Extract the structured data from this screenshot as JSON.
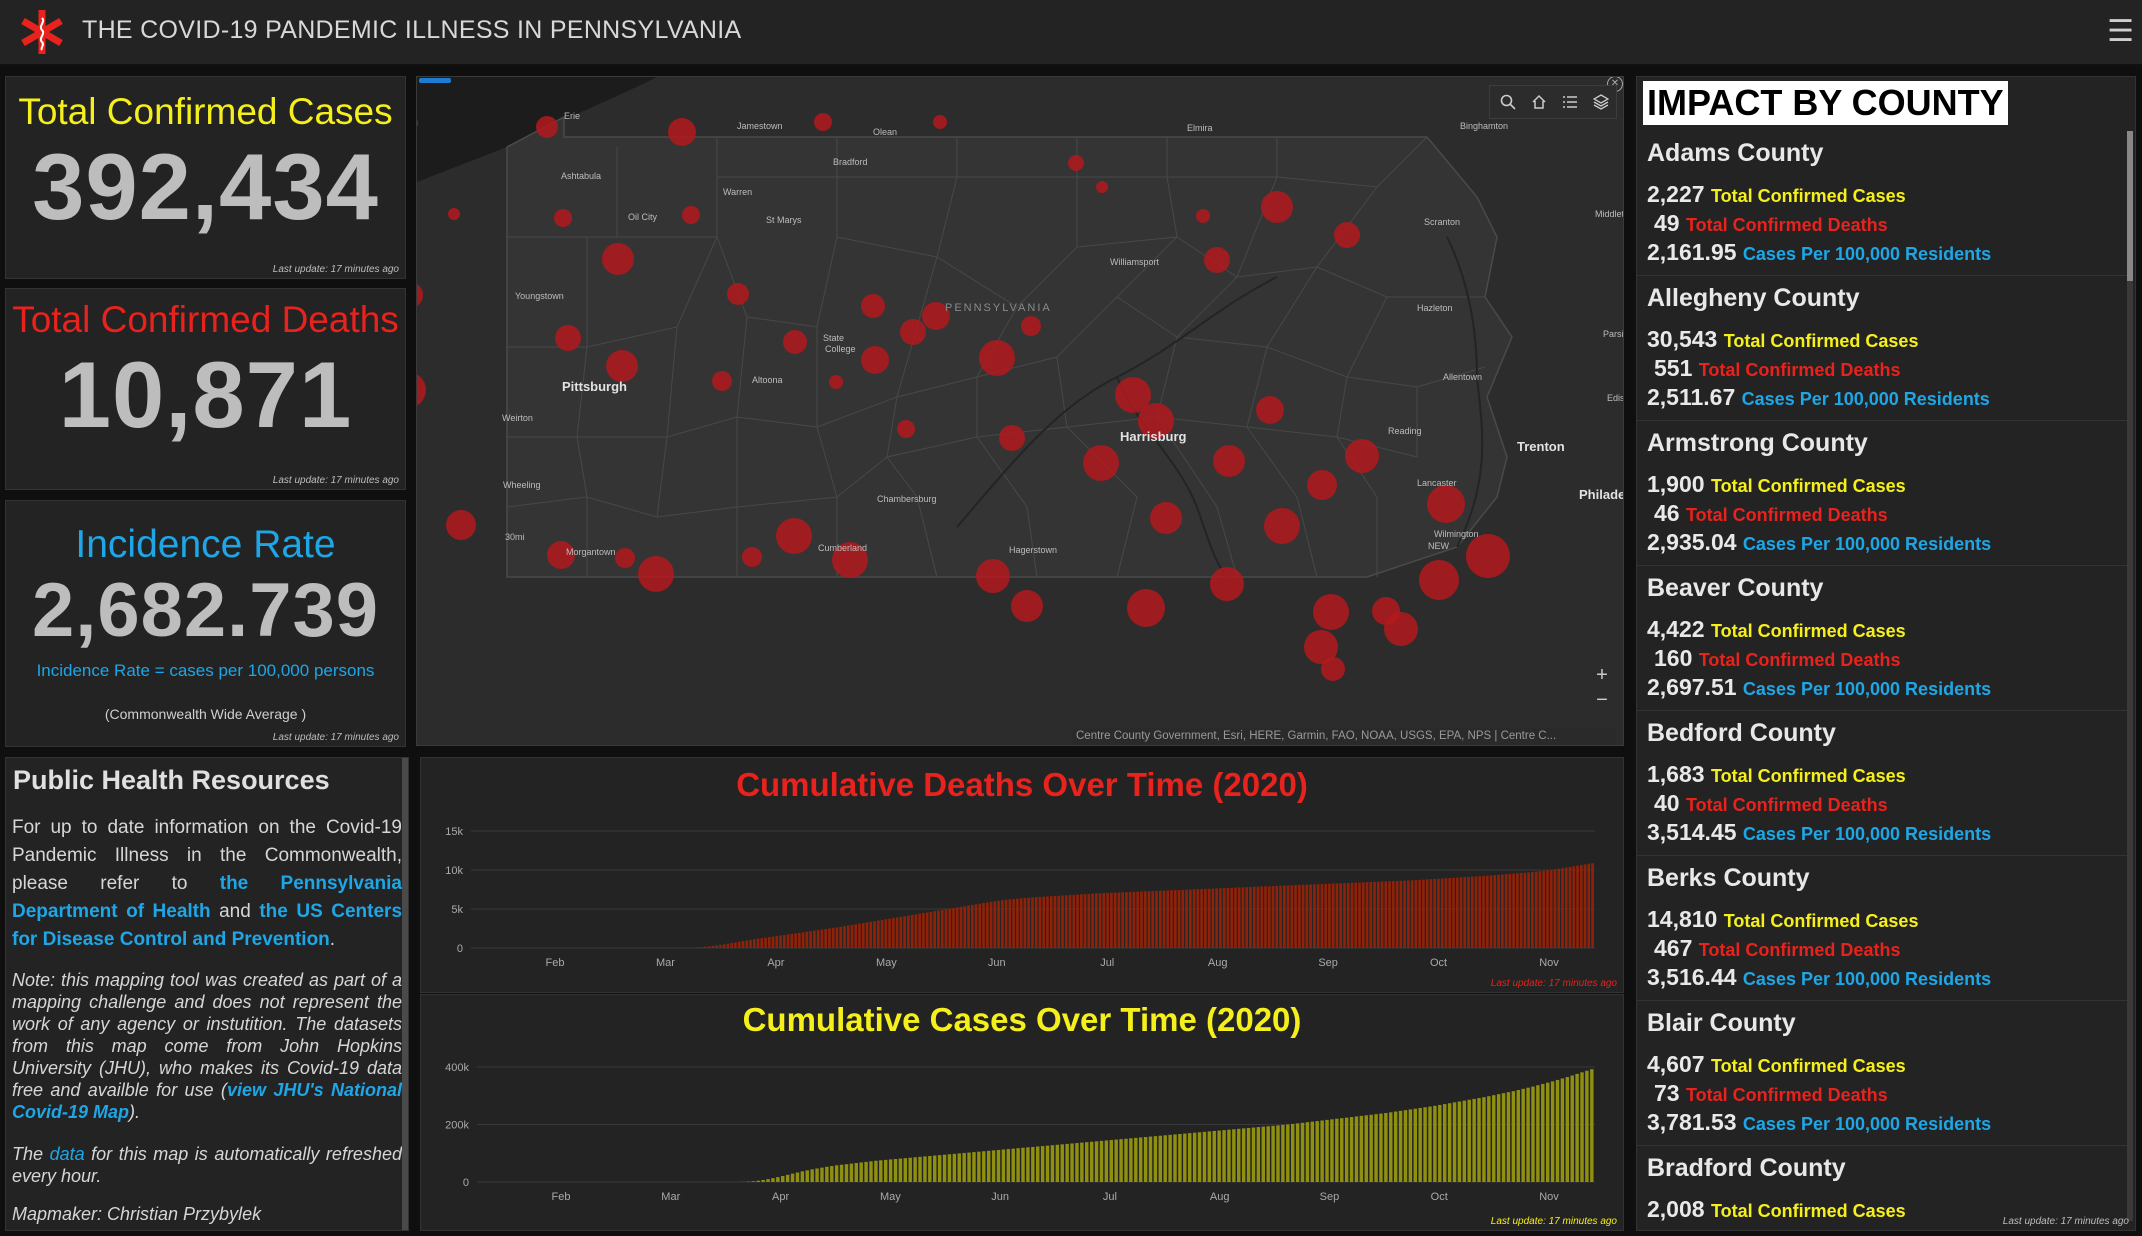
{
  "header": {
    "title": "THE COVID-19 PANDEMIC ILLNESS IN PENNSYLVANIA",
    "logo_icon": "medical-star-icon",
    "menu_icon": "hamburger-menu-icon"
  },
  "indicators": {
    "cases": {
      "label": "Total Confirmed Cases",
      "value": "392,434",
      "updated": "Last update: 17 minutes ago",
      "color": "#f5f01b"
    },
    "deaths": {
      "label": "Total Confirmed Deaths",
      "value": "10,871",
      "updated": "Last update: 17 minutes ago",
      "color": "#e8221c"
    },
    "incidence": {
      "label": "Incidence Rate",
      "value": "2,682.739",
      "subtitle": "Incidence Rate = cases per 100,000 persons",
      "note": "(Commonwealth Wide Average )",
      "updated": "Last update: 17 minutes ago",
      "color": "#1ea6e6"
    }
  },
  "map": {
    "state_label": "PENNSYLVANIA",
    "attribution": "Centre County Government, Esri, HERE, Garmin, FAO, NOAA, USGS, EPA, NPS | Centre C...",
    "tools": [
      "search-icon",
      "home-icon",
      "list-icon",
      "layers-icon"
    ],
    "zoom_in": "+",
    "zoom_out": "−",
    "cities": [
      {
        "name": "Erie",
        "bold": false
      },
      {
        "name": "Jamestown",
        "bold": false
      },
      {
        "name": "Olean",
        "bold": false
      },
      {
        "name": "Elmira",
        "bold": false
      },
      {
        "name": "Binghamton",
        "bold": false
      },
      {
        "name": "Ashtabula",
        "bold": false
      },
      {
        "name": "Bradford",
        "bold": false
      },
      {
        "name": "Warren",
        "bold": false
      },
      {
        "name": "Oil City",
        "bold": false
      },
      {
        "name": "St Marys",
        "bold": false
      },
      {
        "name": "Middletown",
        "bold": false
      },
      {
        "name": "Scranton",
        "bold": false
      },
      {
        "name": "Williamsport",
        "bold": false
      },
      {
        "name": "Youngstown",
        "bold": false
      },
      {
        "name": "Hazleton",
        "bold": false
      },
      {
        "name": "State",
        "bold": false
      },
      {
        "name": "College",
        "bold": false
      },
      {
        "name": "Parsippany",
        "bold": false
      },
      {
        "name": "Allentown",
        "bold": false
      },
      {
        "name": "Pittsburgh",
        "bold": true
      },
      {
        "name": "Altoona",
        "bold": false
      },
      {
        "name": "Weirton",
        "bold": false
      },
      {
        "name": "Edison",
        "bold": false
      },
      {
        "name": "Reading",
        "bold": false
      },
      {
        "name": "Harrisburg",
        "bold": true
      },
      {
        "name": "Trenton",
        "bold": true
      },
      {
        "name": "Wheeling",
        "bold": false
      },
      {
        "name": "Lancaster",
        "bold": false
      },
      {
        "name": "Philadelphia",
        "bold": true
      },
      {
        "name": "Chambersburg",
        "bold": false
      },
      {
        "name": "30mi",
        "bold": false
      },
      {
        "name": "Morgantown",
        "bold": false
      },
      {
        "name": "Cumberland",
        "bold": false
      },
      {
        "name": "Hagerstown",
        "bold": false
      },
      {
        "name": "Wilmington",
        "bold": false
      },
      {
        "name": "NEW",
        "bold": false
      }
    ]
  },
  "resources": {
    "title": "Public Health Resources",
    "p1_a": "For up to date information on the Covid-19 Pandemic Illness in the Commonwealth, please refer to ",
    "p1_link1": "the Pennsylvania Department of Health",
    "p1_b": " and ",
    "p1_link2": "the US Centers for Disease Control and Prevention",
    "p1_c": ".",
    "note_a": "Note: this mapping tool was created as part of a mapping challenge and does not represent the work of any agency or instutition. The datasets from this map come from John Hopkins University (JHU), who makes its Covid-19 data free and availble for use (",
    "note_link": "view JHU's National Covid-19 Map",
    "note_b": ").",
    "refresh_a": "The ",
    "refresh_link": "data",
    "refresh_b": " for this map is automatically refreshed every hour.",
    "mapmaker": "Mapmaker: Christian Przybylek"
  },
  "charts": {
    "deaths_title": "Cumulative Deaths Over Time (2020)",
    "cases_title": "Cumulative Cases Over Time (2020)",
    "deaths_update": "Last update: 17 minutes ago",
    "cases_update": "Last update: 17 minutes ago"
  },
  "chart_data": [
    {
      "type": "bar",
      "title": "Cumulative Deaths Over Time (2020)",
      "x_ticks": [
        "Feb",
        "Mar",
        "Apr",
        "May",
        "Jun",
        "Jul",
        "Aug",
        "Sep",
        "Oct",
        "Nov"
      ],
      "y_ticks": [
        "0",
        "5k",
        "10k",
        "15k"
      ],
      "ylim": [
        0,
        15000
      ],
      "series": [
        {
          "values": [
            0,
            0,
            0,
            0,
            0,
            0,
            0,
            0,
            0,
            0,
            0,
            0,
            0,
            0,
            0,
            0,
            0,
            0,
            0,
            0,
            0,
            0,
            0,
            0,
            0,
            0,
            0,
            0,
            0,
            0,
            0,
            0,
            0,
            0,
            0,
            0,
            0,
            0,
            0,
            0,
            0,
            0,
            0,
            0,
            0,
            0,
            0,
            0,
            0,
            0,
            0,
            0,
            0,
            2,
            5,
            10,
            20,
            30,
            50,
            70,
            100,
            135,
            170,
            220,
            280,
            340,
            410,
            480,
            560,
            640,
            720,
            800,
            880,
            960,
            1040,
            1120,
            1190,
            1260,
            1330,
            1400,
            1470,
            1530,
            1600,
            1670,
            1740,
            1810,
            1880,
            1950,
            2020,
            2090,
            2160,
            2230,
            2300,
            2370,
            2440,
            2510,
            2580,
            2650,
            2720,
            2800,
            2880,
            2960,
            3040,
            3120,
            3200,
            3280,
            3360,
            3440,
            3520,
            3600,
            3680,
            3760,
            3840,
            3920,
            4000,
            4080,
            4160,
            4240,
            4320,
            4400,
            4480,
            4560,
            4640,
            4720,
            4800,
            4880,
            4960,
            5040,
            5120,
            5200,
            5280,
            5360,
            5440,
            5520,
            5600,
            5680,
            5760,
            5840,
            5920,
            6000,
            6070,
            6130,
            6190,
            6240,
            6290,
            6330,
            6370,
            6410,
            6450,
            6490,
            6520,
            6550,
            6580,
            6610,
            6640,
            6670,
            6700,
            6730,
            6760,
            6790,
            6820,
            6850,
            6880,
            6910,
            6940,
            6970,
            7000,
            7020,
            7040,
            7060,
            7080,
            7100,
            7120,
            7140,
            7160,
            7180,
            7200,
            7220,
            7240,
            7260,
            7280,
            7300,
            7320,
            7340,
            7360,
            7380,
            7400,
            7420,
            7440,
            7460,
            7480,
            7500,
            7520,
            7540,
            7560,
            7580,
            7600,
            7620,
            7640,
            7660,
            7680,
            7700,
            7720,
            7740,
            7760,
            7780,
            7800,
            7820,
            7840,
            7860,
            7880,
            7900,
            7920,
            7940,
            7960,
            7980,
            8000,
            8020,
            8040,
            8060,
            8080,
            8100,
            8120,
            8140,
            8160,
            8180,
            8200,
            8220,
            8240,
            8260,
            8280,
            8300,
            8320,
            8340,
            8360,
            8380,
            8400,
            8420,
            8440,
            8460,
            8480,
            8500,
            8520,
            8540,
            8560,
            8580,
            8600,
            8620,
            8640,
            8660,
            8680,
            8700,
            8730,
            8760,
            8790,
            8820,
            8850,
            8880,
            8910,
            8940,
            8970,
            9000,
            9030,
            9060,
            9090,
            9120,
            9150,
            9180,
            9210,
            9240,
            9270,
            9300,
            9340,
            9380,
            9420,
            9460,
            9500,
            9540,
            9580,
            9620,
            9660,
            9700,
            9750,
            9800,
            9850,
            9900,
            9950,
            10000,
            10080,
            10160,
            10240,
            10320,
            10400,
            10480,
            10560,
            10640,
            10720,
            10800,
            10871
          ]
        }
      ]
    },
    {
      "type": "bar",
      "title": "Cumulative Cases Over Time (2020)",
      "x_ticks": [
        "Feb",
        "Mar",
        "Apr",
        "May",
        "Jun",
        "Jul",
        "Aug",
        "Sep",
        "Oct",
        "Nov"
      ],
      "y_ticks": [
        "0",
        "200k",
        "400k"
      ],
      "ylim": [
        0,
        400000
      ],
      "series": [
        {
          "values": [
            0,
            0,
            0,
            0,
            0,
            0,
            0,
            0,
            0,
            0,
            0,
            0,
            0,
            0,
            0,
            0,
            0,
            0,
            0,
            0,
            0,
            0,
            0,
            0,
            0,
            0,
            0,
            0,
            0,
            0,
            0,
            0,
            0,
            0,
            0,
            0,
            0,
            0,
            0,
            0,
            0,
            0,
            0,
            0,
            0,
            0,
            0,
            0,
            0,
            0,
            0,
            0,
            0,
            200,
            700,
            1500,
            2700,
            4500,
            7000,
            10000,
            13500,
            17000,
            21000,
            25000,
            29000,
            33000,
            37000,
            40500,
            44000,
            47000,
            50000,
            53000,
            55500,
            58000,
            60000,
            62000,
            64000,
            66000,
            68000,
            70000,
            72000,
            74000,
            75500,
            77000,
            78500,
            80000,
            81500,
            83000,
            84500,
            86000,
            87500,
            89000,
            90500,
            92000,
            93500,
            95000,
            96500,
            98000,
            99500,
            101000,
            102500,
            104000,
            105500,
            107000,
            108500,
            110000,
            111500,
            113000,
            114500,
            116000,
            117500,
            119000,
            120500,
            122000,
            123500,
            125000,
            126500,
            128000,
            129500,
            131000,
            132500,
            134000,
            135500,
            137000,
            138500,
            140000,
            141500,
            143000,
            144500,
            146000,
            147500,
            149000,
            150500,
            152000,
            153500,
            155000,
            156500,
            158000,
            159500,
            161000,
            162500,
            164000,
            165500,
            167000,
            168500,
            170000,
            171500,
            173000,
            174500,
            176000,
            177500,
            179000,
            180500,
            182000,
            183500,
            185000,
            186500,
            188000,
            189500,
            191000,
            192500,
            194000,
            195500,
            197000,
            198500,
            200000,
            202000,
            204000,
            206000,
            208000,
            210000,
            212000,
            214000,
            216000,
            218000,
            220000,
            222000,
            224000,
            226000,
            228000,
            230000,
            232000,
            234000,
            236000,
            238000,
            240000,
            242500,
            245000,
            247500,
            250000,
            252500,
            255000,
            257500,
            260000,
            262500,
            265000,
            268000,
            271000,
            274000,
            277000,
            280000,
            283000,
            286000,
            289000,
            292000,
            295000,
            298500,
            302000,
            305500,
            309000,
            312500,
            316000,
            320000,
            324000,
            328000,
            332000,
            336500,
            341000,
            345500,
            350000,
            355000,
            360000,
            365000,
            370500,
            376000,
            381500,
            387000,
            392434
          ]
        }
      ]
    }
  ],
  "county_panel": {
    "title": "IMPACT BY COUNTY",
    "cases_label": "Total Confirmed Cases",
    "deaths_label": "Total Confirmed Deaths",
    "rate_label": "Cases Per 100,000 Residents",
    "updated": "Last update: 17 minutes ago",
    "counties": [
      {
        "name": "Adams County",
        "cases": "2,227",
        "deaths": "49",
        "rate": "2,161.95"
      },
      {
        "name": "Allegheny County",
        "cases": "30,543",
        "deaths": "551",
        "rate": "2,511.67"
      },
      {
        "name": "Armstrong County",
        "cases": "1,900",
        "deaths": "46",
        "rate": "2,935.04"
      },
      {
        "name": "Beaver County",
        "cases": "4,422",
        "deaths": "160",
        "rate": "2,697.51"
      },
      {
        "name": "Bedford County",
        "cases": "1,683",
        "deaths": "40",
        "rate": "3,514.45"
      },
      {
        "name": "Berks County",
        "cases": "14,810",
        "deaths": "467",
        "rate": "3,516.44"
      },
      {
        "name": "Blair County",
        "cases": "4,607",
        "deaths": "73",
        "rate": "3,781.53"
      },
      {
        "name": "Bradford County",
        "cases": "2,008",
        "deaths": "",
        "rate": ""
      }
    ]
  },
  "colors": {
    "yellow": "#f5f01b",
    "red": "#e8221c",
    "blue": "#1ea6e6",
    "deaths_bar": "#8f2208",
    "cases_bar": "#8f8f10",
    "circle": "#b3191d"
  }
}
